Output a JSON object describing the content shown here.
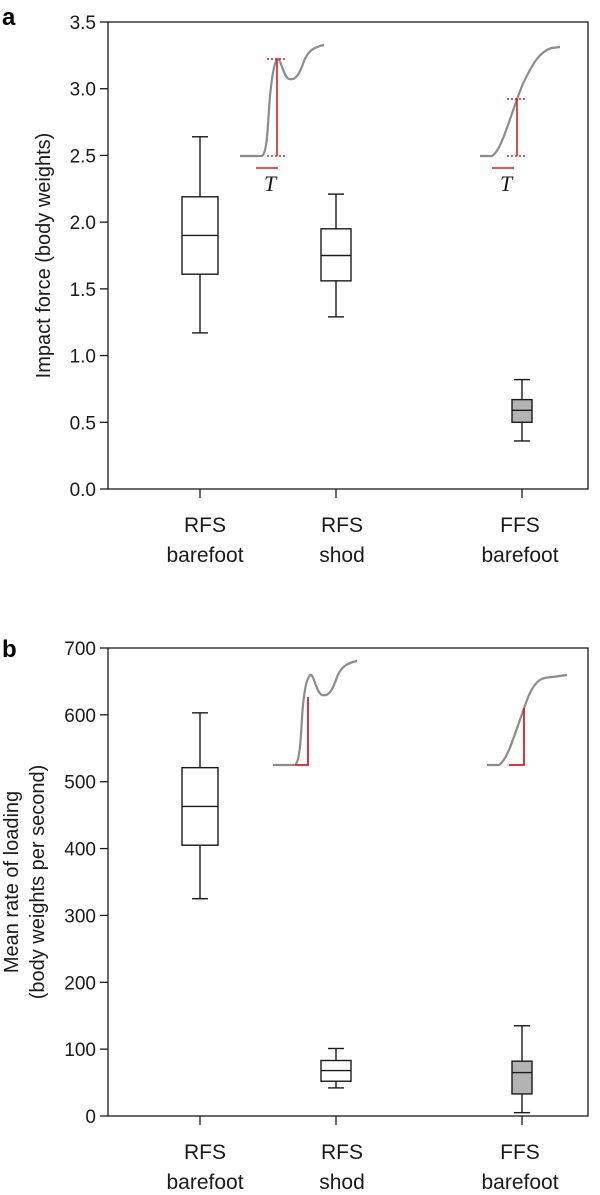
{
  "chart_data": [
    {
      "type": "box",
      "panel": "a",
      "ylabel": "Impact force (body weights)",
      "ylim": [
        0,
        3.5
      ],
      "yticks": [
        "0.0",
        "0.5",
        "1.0",
        "1.5",
        "2.0",
        "2.5",
        "3.0",
        "3.5"
      ],
      "categories": [
        {
          "line1": "RFS",
          "line2": "barefoot"
        },
        {
          "line1": "RFS",
          "line2": "shod"
        },
        {
          "line1": "FFS",
          "line2": "barefoot"
        }
      ],
      "boxes": [
        {
          "min": 1.17,
          "q1": 1.61,
          "median": 1.9,
          "q3": 2.19,
          "max": 2.64,
          "fill": "#ffffff"
        },
        {
          "min": 1.29,
          "q1": 1.56,
          "median": 1.75,
          "q3": 1.95,
          "max": 2.21,
          "fill": "#ffffff"
        },
        {
          "min": 0.36,
          "q1": 0.5,
          "median": 0.59,
          "q3": 0.67,
          "max": 0.82,
          "fill": "#b3b3b3"
        }
      ],
      "insets": [
        {
          "shape": "peak",
          "marker": "dashed-range",
          "symbol": "T"
        },
        {
          "shape": "smooth",
          "marker": "dashed-range",
          "symbol": "T"
        }
      ]
    },
    {
      "type": "box",
      "panel": "b",
      "ylabel_line1": "Mean rate of loading",
      "ylabel_line2": "(body weights per second)",
      "ylim": [
        0,
        700
      ],
      "yticks": [
        "0",
        "100",
        "200",
        "300",
        "400",
        "500",
        "600",
        "700"
      ],
      "categories": [
        {
          "line1": "RFS",
          "line2": "barefoot"
        },
        {
          "line1": "RFS",
          "line2": "shod"
        },
        {
          "line1": "FFS",
          "line2": "barefoot"
        }
      ],
      "boxes": [
        {
          "min": 325,
          "q1": 405,
          "median": 463,
          "q3": 521,
          "max": 603,
          "fill": "#ffffff"
        },
        {
          "min": 42,
          "q1": 52,
          "median": 68,
          "q3": 83,
          "max": 101,
          "fill": "#ffffff"
        },
        {
          "min": 5,
          "q1": 33,
          "median": 65,
          "q3": 82,
          "max": 135,
          "fill": "#b3b3b3"
        }
      ],
      "insets": [
        {
          "shape": "peak",
          "marker": "slope-corner"
        },
        {
          "shape": "smooth",
          "marker": "slope-corner"
        }
      ]
    }
  ],
  "colors": {
    "axis": "#1a1a1a",
    "box_stroke": "#1a1a1a",
    "ffs_fill": "#b3b3b3",
    "curve": "#8c8c8c",
    "marker": "#d61f26"
  }
}
